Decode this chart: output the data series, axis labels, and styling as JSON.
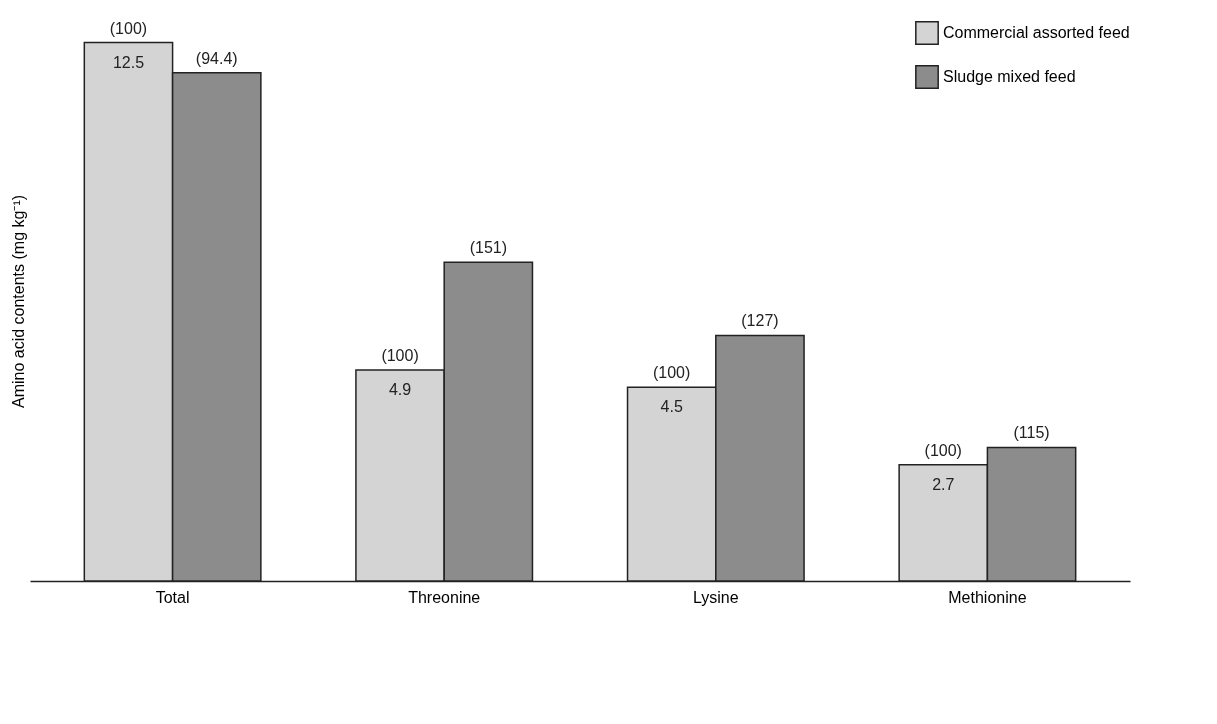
{
  "chart_data": {
    "type": "bar",
    "ylabel": "Amino acid contents (mg kg⁻¹)",
    "categories": [
      "Total",
      "Threonine",
      "Lysine",
      "Methionine"
    ],
    "series": [
      {
        "name": "Commercial assorted feed",
        "color": "#d4d4d4",
        "values": [
          12.5,
          4.9,
          4.5,
          2.7
        ],
        "value_labels": [
          "12.5",
          "4.9",
          "4.5",
          "2.7"
        ]
      },
      {
        "name": "Sludge mixed feed",
        "color": "#8c8c8c",
        "values": [
          11.8,
          7.4,
          5.7,
          3.1
        ]
      }
    ],
    "annotations": [
      {
        "text": "(100)",
        "x": "Total",
        "y": 12.5
      },
      {
        "text": "(94.4)",
        "x": "Total",
        "y": 11.8
      },
      {
        "text": "(100)",
        "x": "Threonine",
        "y": 4.9
      },
      {
        "text": "(151)",
        "x": "Threonine",
        "y": 7.4
      },
      {
        "text": "(100)",
        "x": "Lysine",
        "y": 4.5
      },
      {
        "text": "(127)",
        "x": "Lysine",
        "y": 5.7
      },
      {
        "text": "(100)",
        "x": "Methionine",
        "y": 2.7
      },
      {
        "text": "(115)",
        "x": "Methionine",
        "y": 3.1
      }
    ],
    "legend": "top right",
    "tick_labels": "x"
  }
}
